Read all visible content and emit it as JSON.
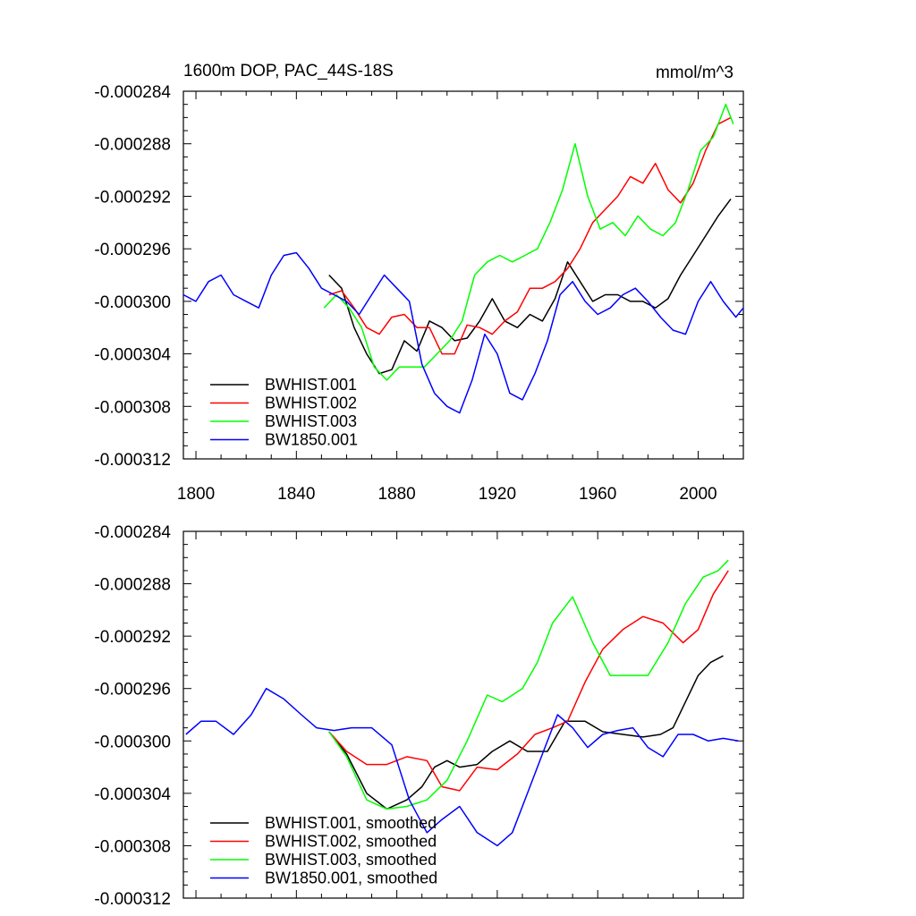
{
  "chart_data": [
    {
      "type": "line",
      "title": "1600m DOP, PAC_44S-18S",
      "units": "mmol/m^3",
      "xlim": [
        1795,
        2018
      ],
      "ylim": [
        -0.000312,
        -0.000284
      ],
      "x_ticks": [
        1800,
        1840,
        1880,
        1920,
        1960,
        2000
      ],
      "x_tick_labels": [
        "1800",
        "1840",
        "1880",
        "1920",
        "1960",
        "2000"
      ],
      "y_ticks": [
        -0.000284,
        -0.000288,
        -0.000292,
        -0.000296,
        -0.0003,
        -0.000304,
        -0.000308,
        -0.000312
      ],
      "y_tick_labels": [
        "-0.000284",
        "-0.000288",
        "-0.000292",
        "-0.000296",
        "-0.000300",
        "-0.000304",
        "-0.000308",
        "-0.000312"
      ],
      "legend_position": "bottom-left",
      "series": [
        {
          "name": "BWHIST.001",
          "color": "#000000",
          "x": [
            1853,
            1858,
            1863,
            1868,
            1873,
            1878,
            1883,
            1888,
            1893,
            1898,
            1903,
            1908,
            1913,
            1918,
            1923,
            1928,
            1933,
            1938,
            1943,
            1948,
            1953,
            1958,
            1963,
            1968,
            1973,
            1978,
            1983,
            1988,
            1993,
            1998,
            2003,
            2008,
            2013
          ],
          "y": [
            -0.000298,
            -0.000299,
            -0.000302,
            -0.000304,
            -0.0003055,
            -0.0003052,
            -0.000303,
            -0.0003038,
            -0.0003015,
            -0.000302,
            -0.000303,
            -0.0003028,
            -0.0003015,
            -0.0002998,
            -0.0003015,
            -0.000302,
            -0.000301,
            -0.0003015,
            -0.0002998,
            -0.000297,
            -0.0002985,
            -0.0003,
            -0.0002995,
            -0.0002995,
            -0.0003,
            -0.0003,
            -0.0003005,
            -0.0002998,
            -0.000298,
            -0.0002965,
            -0.000295,
            -0.0002935,
            -0.0002922
          ]
        },
        {
          "name": "BWHIST.002",
          "color": "#ff0000",
          "x": [
            1853,
            1858,
            1863,
            1868,
            1873,
            1878,
            1883,
            1888,
            1893,
            1898,
            1903,
            1908,
            1913,
            1918,
            1923,
            1928,
            1933,
            1938,
            1943,
            1948,
            1953,
            1958,
            1963,
            1968,
            1973,
            1978,
            1983,
            1988,
            1993,
            1998,
            2003,
            2008,
            2013
          ],
          "y": [
            -0.0002995,
            -0.0002992,
            -0.0003005,
            -0.000302,
            -0.0003025,
            -0.0003012,
            -0.000301,
            -0.000302,
            -0.000302,
            -0.000304,
            -0.000304,
            -0.0003018,
            -0.000302,
            -0.0003025,
            -0.0003015,
            -0.0003008,
            -0.000299,
            -0.000299,
            -0.0002985,
            -0.0002975,
            -0.000296,
            -0.000294,
            -0.000293,
            -0.000292,
            -0.0002905,
            -0.000291,
            -0.0002895,
            -0.0002915,
            -0.0002925,
            -0.000291,
            -0.0002885,
            -0.0002865,
            -0.000286
          ]
        },
        {
          "name": "BWHIST.003",
          "color": "#00ff00",
          "x": [
            1851,
            1856,
            1861,
            1866,
            1871,
            1876,
            1881,
            1886,
            1891,
            1896,
            1901,
            1906,
            1911,
            1916,
            1921,
            1926,
            1931,
            1936,
            1941,
            1946,
            1951,
            1956,
            1961,
            1966,
            1971,
            1976,
            1981,
            1986,
            1991,
            1996,
            2001,
            2006,
            2011,
            2014
          ],
          "y": [
            -0.0003005,
            -0.0002995,
            -0.0003005,
            -0.000302,
            -0.000305,
            -0.000306,
            -0.000305,
            -0.000305,
            -0.000305,
            -0.000304,
            -0.000303,
            -0.0003015,
            -0.000298,
            -0.000297,
            -0.0002965,
            -0.000297,
            -0.0002965,
            -0.000296,
            -0.000294,
            -0.0002915,
            -0.000288,
            -0.000292,
            -0.0002945,
            -0.000294,
            -0.000295,
            -0.0002935,
            -0.0002945,
            -0.000295,
            -0.000294,
            -0.0002915,
            -0.0002885,
            -0.0002875,
            -0.000285,
            -0.0002865
          ]
        },
        {
          "name": "BW1850.001",
          "color": "#0000ff",
          "x": [
            1795,
            1800,
            1805,
            1810,
            1815,
            1820,
            1825,
            1830,
            1835,
            1840,
            1845,
            1850,
            1855,
            1860,
            1865,
            1870,
            1875,
            1880,
            1885,
            1890,
            1895,
            1900,
            1905,
            1910,
            1915,
            1920,
            1925,
            1930,
            1935,
            1940,
            1945,
            1950,
            1955,
            1960,
            1965,
            1970,
            1975,
            1980,
            1985,
            1990,
            1995,
            2000,
            2005,
            2010,
            2015,
            2018
          ],
          "y": [
            -0.0002995,
            -0.0003,
            -0.0002985,
            -0.000298,
            -0.0002995,
            -0.0003,
            -0.0003005,
            -0.000298,
            -0.0002965,
            -0.0002963,
            -0.0002975,
            -0.000299,
            -0.0002995,
            -0.0003,
            -0.000301,
            -0.0002995,
            -0.000298,
            -0.000299,
            -0.0003,
            -0.0003048,
            -0.000307,
            -0.000308,
            -0.0003085,
            -0.000306,
            -0.0003025,
            -0.000304,
            -0.000307,
            -0.0003075,
            -0.0003055,
            -0.000303,
            -0.0002995,
            -0.0002985,
            -0.0003,
            -0.000301,
            -0.0003005,
            -0.0002995,
            -0.000299,
            -0.0003,
            -0.0003012,
            -0.0003022,
            -0.0003025,
            -0.0003,
            -0.0002985,
            -0.0003,
            -0.0003012,
            -0.0003005
          ]
        }
      ]
    },
    {
      "type": "line",
      "title": "",
      "xlim": [
        1795,
        2018
      ],
      "ylim": [
        -0.000312,
        -0.000284
      ],
      "x_ticks": [
        1800,
        1840,
        1880,
        1920,
        1960,
        2000
      ],
      "y_ticks": [
        -0.000284,
        -0.000288,
        -0.000292,
        -0.000296,
        -0.0003,
        -0.000304,
        -0.000308,
        -0.000312
      ],
      "y_tick_labels": [
        "-0.000284",
        "-0.000288",
        "-0.000292",
        "-0.000296",
        "-0.000300",
        "-0.000304",
        "-0.000308",
        "-0.000312"
      ],
      "legend_position": "bottom-left",
      "series": [
        {
          "name": "BWHIST.001, smoothed",
          "color": "#000000",
          "x": [
            1853,
            1860,
            1868,
            1876,
            1884,
            1890,
            1895,
            1900,
            1905,
            1912,
            1918,
            1925,
            1932,
            1940,
            1947,
            1955,
            1962,
            1970,
            1978,
            1985,
            1990,
            1995,
            2000,
            2005,
            2010
          ],
          "y": [
            -0.0002993,
            -0.000301,
            -0.000304,
            -0.0003052,
            -0.0003045,
            -0.0003035,
            -0.000302,
            -0.0003015,
            -0.000302,
            -0.0003018,
            -0.0003008,
            -0.0003,
            -0.0003008,
            -0.0003008,
            -0.0002985,
            -0.0002985,
            -0.0002993,
            -0.0002995,
            -0.0002997,
            -0.0002995,
            -0.000299,
            -0.000297,
            -0.000295,
            -0.000294,
            -0.0002935
          ]
        },
        {
          "name": "BWHIST.002, smoothed",
          "color": "#ff0000",
          "x": [
            1853,
            1860,
            1868,
            1876,
            1884,
            1892,
            1898,
            1905,
            1912,
            1920,
            1928,
            1935,
            1942,
            1948,
            1955,
            1962,
            1970,
            1978,
            1986,
            1994,
            2000,
            2006,
            2012
          ],
          "y": [
            -0.0002993,
            -0.0003008,
            -0.0003018,
            -0.0003018,
            -0.0003012,
            -0.0003015,
            -0.0003035,
            -0.0003038,
            -0.000302,
            -0.0003022,
            -0.000301,
            -0.0002995,
            -0.000299,
            -0.0002985,
            -0.0002955,
            -0.000293,
            -0.0002915,
            -0.0002905,
            -0.000291,
            -0.0002925,
            -0.0002915,
            -0.0002888,
            -0.000287
          ]
        },
        {
          "name": "BWHIST.003, smoothed",
          "color": "#00ff00",
          "x": [
            1853,
            1860,
            1868,
            1876,
            1884,
            1892,
            1900,
            1908,
            1916,
            1922,
            1930,
            1936,
            1942,
            1950,
            1958,
            1965,
            1972,
            1980,
            1988,
            1995,
            2002,
            2008,
            2012
          ],
          "y": [
            -0.0002993,
            -0.0003012,
            -0.0003045,
            -0.0003052,
            -0.000305,
            -0.0003045,
            -0.000303,
            -0.0003,
            -0.0002965,
            -0.000297,
            -0.000296,
            -0.000294,
            -0.000291,
            -0.000289,
            -0.0002925,
            -0.000295,
            -0.000295,
            -0.000295,
            -0.0002925,
            -0.0002895,
            -0.0002875,
            -0.000287,
            -0.0002862
          ]
        },
        {
          "name": "BW1850.001, smoothed",
          "color": "#0000ff",
          "x": [
            1796,
            1802,
            1808,
            1815,
            1822,
            1828,
            1835,
            1842,
            1848,
            1855,
            1862,
            1870,
            1878,
            1885,
            1892,
            1898,
            1905,
            1912,
            1920,
            1926,
            1932,
            1938,
            1944,
            1950,
            1956,
            1962,
            1968,
            1974,
            1980,
            1986,
            1992,
            1998,
            2004,
            2010,
            2016
          ],
          "y": [
            -0.0002995,
            -0.0002985,
            -0.0002985,
            -0.0002995,
            -0.000298,
            -0.000296,
            -0.0002968,
            -0.000298,
            -0.000299,
            -0.0002992,
            -0.000299,
            -0.000299,
            -0.0003003,
            -0.0003045,
            -0.000307,
            -0.000306,
            -0.000305,
            -0.000307,
            -0.000308,
            -0.000307,
            -0.000304,
            -0.000301,
            -0.000298,
            -0.000299,
            -0.0003005,
            -0.0002995,
            -0.0002992,
            -0.000299,
            -0.0003005,
            -0.0003012,
            -0.0002995,
            -0.0002995,
            -0.0003,
            -0.0002998,
            -0.0003
          ]
        }
      ]
    }
  ]
}
